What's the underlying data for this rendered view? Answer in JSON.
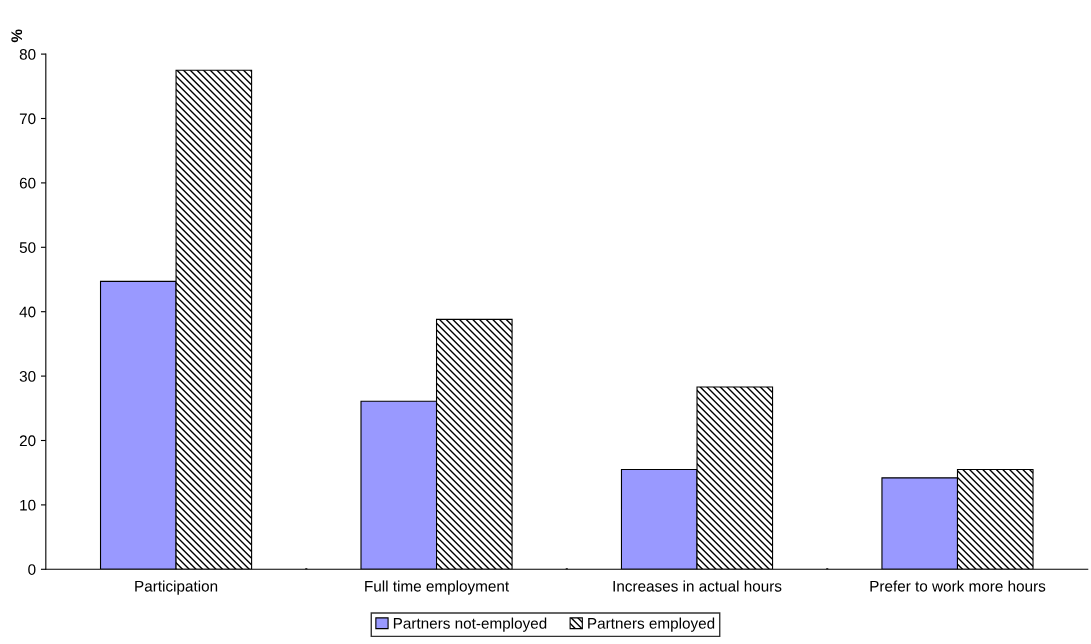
{
  "chart_data": {
    "type": "bar",
    "ylabel": "%",
    "categories": [
      "Participation",
      "Full time employment",
      "Increases in actual hours",
      "Prefer to work more hours"
    ],
    "series": [
      {
        "name": "Partners not-employed",
        "color": "#9999ff",
        "values": [
          44.7,
          26.1,
          15.5,
          14.2
        ]
      },
      {
        "name": "Partners employed",
        "color": "#000000",
        "values": [
          77.5,
          38.8,
          28.3,
          15.5
        ]
      }
    ],
    "ylim": [
      0,
      80
    ],
    "yticks": [
      0,
      10,
      20,
      30,
      40,
      50,
      60,
      70,
      80
    ],
    "legend": "bottom"
  }
}
